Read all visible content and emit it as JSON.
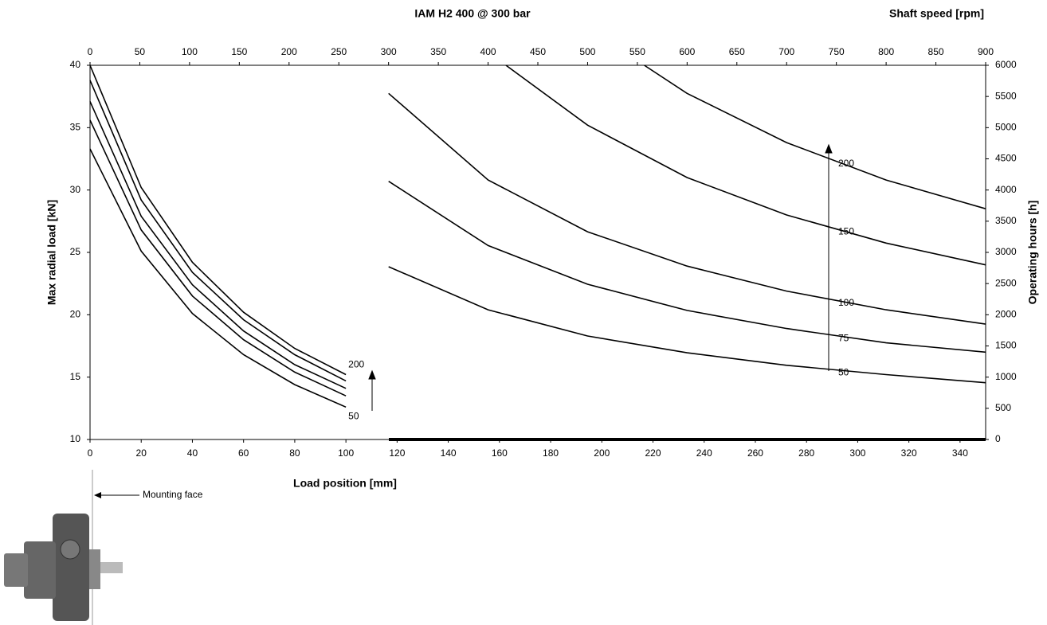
{
  "chart_data": {
    "type": "line",
    "title": "IAM H2 400 @ 300 bar",
    "xlabel": "Load position [mm]",
    "x2label": "Shaft speed [rpm]",
    "ylabel": "Max radial load [kN]",
    "y2label": "Operating hours [h]",
    "annotation": "Mounting face",
    "color": "#000000",
    "xlim": [
      0,
      350
    ],
    "xticks": [
      0,
      20,
      40,
      60,
      80,
      100,
      120,
      140,
      160,
      180,
      200,
      220,
      240,
      260,
      280,
      300,
      320,
      340
    ],
    "x2lim": [
      0,
      900
    ],
    "x2ticks": [
      0,
      50,
      100,
      150,
      200,
      250,
      300,
      350,
      400,
      450,
      500,
      550,
      600,
      650,
      700,
      750,
      800,
      850,
      900
    ],
    "ylim": [
      10,
      40
    ],
    "yticks": [
      10,
      15,
      20,
      25,
      30,
      35,
      40
    ],
    "y2lim": [
      0,
      6000
    ],
    "y2ticks": [
      0,
      500,
      1000,
      1500,
      2000,
      2500,
      3000,
      3500,
      4000,
      4500,
      5000,
      5500,
      6000
    ],
    "series": [
      {
        "name": "200",
        "x": [
          0,
          20,
          40,
          60,
          80,
          100
        ],
        "values": [
          40,
          30.2,
          24.2,
          20.2,
          17.3,
          15.2
        ]
      },
      {
        "x": [
          0,
          20,
          40,
          60,
          80,
          100
        ],
        "values": [
          38.8,
          29.2,
          23.4,
          19.6,
          16.8,
          14.7
        ]
      },
      {
        "x": [
          0,
          20,
          40,
          60,
          80,
          100
        ],
        "values": [
          37.1,
          27.9,
          22.4,
          18.7,
          16.0,
          14.1
        ]
      },
      {
        "x": [
          0,
          20,
          40,
          60,
          80,
          100
        ],
        "values": [
          35.6,
          26.8,
          21.5,
          18.0,
          15.4,
          13.5
        ]
      },
      {
        "name": "50",
        "x": [
          0,
          20,
          40,
          60,
          80,
          100
        ],
        "values": [
          33.3,
          25.1,
          20.1,
          16.8,
          14.4,
          12.6
        ]
      },
      {
        "name": "200",
        "axis": "y2",
        "xaxis": "x2",
        "x": [
          557,
          600,
          700,
          800,
          900
        ],
        "values": [
          6000,
          5550,
          4760,
          4160,
          3700
        ]
      },
      {
        "name": "150",
        "axis": "y2",
        "xaxis": "x2",
        "x": [
          418,
          500,
          600,
          700,
          800,
          900
        ],
        "values": [
          6000,
          5040,
          4200,
          3600,
          3150,
          2800
        ]
      },
      {
        "name": "100",
        "axis": "y2",
        "xaxis": "x2",
        "x": [
          300,
          400,
          500,
          600,
          700,
          800,
          900
        ],
        "values": [
          5550,
          4160,
          3330,
          2780,
          2380,
          2080,
          1850
        ]
      },
      {
        "name": "75",
        "axis": "y2",
        "xaxis": "x2",
        "x": [
          300,
          400,
          500,
          600,
          700,
          800,
          900
        ],
        "values": [
          4140,
          3110,
          2490,
          2070,
          1780,
          1550,
          1400
        ]
      },
      {
        "name": "50",
        "axis": "y2",
        "xaxis": "x2",
        "x": [
          300,
          400,
          500,
          600,
          700,
          800,
          900
        ],
        "values": [
          2770,
          2080,
          1660,
          1390,
          1190,
          1040,
          910
        ]
      }
    ]
  }
}
